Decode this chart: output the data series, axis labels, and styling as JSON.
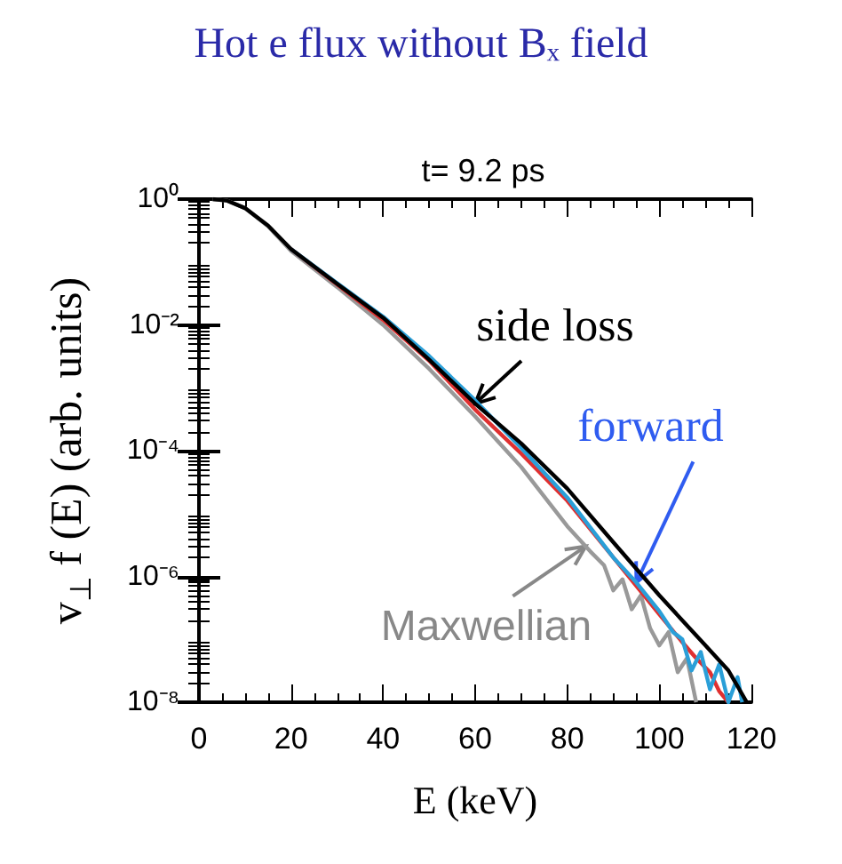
{
  "chart_data": {
    "type": "line",
    "title": "Hot e flux without Bₓ field",
    "subtitle": "t= 9.2 ps",
    "xlabel": "E (keV)",
    "ylabel": "v$_{⊥}$ f (E) (arb. units)",
    "log": "y",
    "grid": false,
    "legend": false,
    "marker": "none",
    "line_style": "solid",
    "xlim": [
      0,
      120
    ],
    "xticks": [
      0,
      20,
      40,
      60,
      80,
      100,
      120
    ],
    "ylim": [
      1e-08,
      1
    ],
    "yticks": [
      {
        "value": 1,
        "label": "10⁰"
      },
      {
        "value": 0.01,
        "label": "10⁻²"
      },
      {
        "value": 0.0001,
        "label": "10⁻⁴"
      },
      {
        "value": 1e-06,
        "label": "10⁻⁶"
      },
      {
        "value": 1e-08,
        "label": "10⁻⁸"
      }
    ],
    "series": [
      {
        "name": "Maxwellian",
        "color": "#999999",
        "x": [
          3,
          6,
          10,
          15,
          20,
          30,
          40,
          50,
          60,
          70,
          80,
          85,
          88,
          90,
          92,
          94,
          96,
          98,
          100,
          102,
          104,
          106,
          108
        ],
        "values": [
          1,
          0.95,
          0.72,
          0.37,
          0.15,
          0.04,
          0.01,
          0.002,
          0.00035,
          5.5e-05,
          6.3e-06,
          2.5e-06,
          1.5e-06,
          6e-07,
          9e-07,
          3e-07,
          5e-07,
          1.5e-07,
          8e-08,
          1.3e-07,
          3e-08,
          5e-08,
          1e-08
        ]
      },
      {
        "color": "#e03030",
        "x": [
          20,
          30,
          40,
          50,
          60,
          70,
          80,
          90,
          100,
          105,
          108,
          111,
          113,
          115
        ],
        "values": [
          0.16,
          0.044,
          0.012,
          0.0027,
          0.00045,
          9e-05,
          1.6e-05,
          2e-06,
          2.5e-07,
          9e-08,
          5e-08,
          3e-08,
          1.5e-08,
          1e-08
        ]
      },
      {
        "name": "forward",
        "color": "#2a9fd8",
        "x": [
          20,
          30,
          40,
          50,
          60,
          70,
          80,
          90,
          95,
          100,
          103,
          105,
          107,
          109,
          111,
          113,
          115,
          117,
          118
        ],
        "values": [
          0.16,
          0.046,
          0.0135,
          0.0032,
          0.00063,
          0.00011,
          1.8e-05,
          2e-06,
          8e-07,
          2.8e-07,
          1.3e-07,
          1e-07,
          3.2e-08,
          6.3e-08,
          1.6e-08,
          4e-08,
          1e-08,
          2.5e-08,
          1e-08
        ]
      },
      {
        "name": "side loss",
        "color": "#000000",
        "x": [
          3,
          6,
          10,
          15,
          20,
          30,
          40,
          50,
          60,
          70,
          80,
          90,
          100,
          110,
          115,
          119
        ],
        "values": [
          1,
          0.95,
          0.72,
          0.38,
          0.16,
          0.045,
          0.013,
          0.0028,
          0.00056,
          0.00013,
          2.5e-05,
          3.5e-06,
          5e-07,
          8e-08,
          3.2e-08,
          1e-08
        ]
      }
    ]
  }
}
